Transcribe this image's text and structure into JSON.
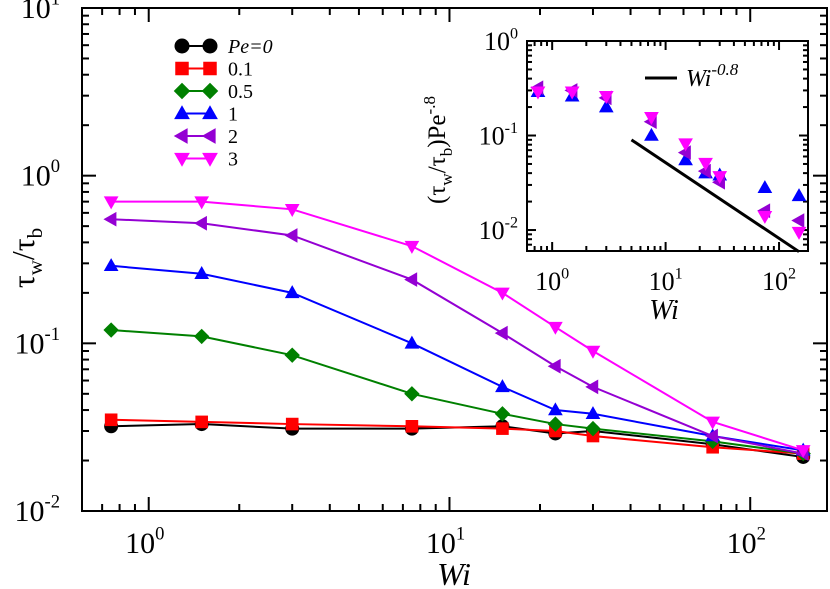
{
  "chart_data": {
    "type": "line",
    "xscale": "log",
    "yscale": "log",
    "xlim": [
      0.6,
      180
    ],
    "ylim": [
      0.01,
      10
    ],
    "xlabel": "Wi",
    "ylabel": {
      "base1": "τ",
      "sub1": "w",
      "sep": "/",
      "base2": "τ",
      "sub2": "b"
    },
    "x_ticks": [
      {
        "value": 1,
        "base": "10",
        "exp": "0"
      },
      {
        "value": 10,
        "base": "10",
        "exp": "1"
      },
      {
        "value": 100,
        "base": "10",
        "exp": "2"
      }
    ],
    "y_ticks": [
      {
        "value": 0.01,
        "base": "10",
        "exp": "-2"
      },
      {
        "value": 0.1,
        "base": "10",
        "exp": "-1"
      },
      {
        "value": 1,
        "base": "10",
        "exp": "0"
      },
      {
        "value": 10,
        "base": "10",
        "exp": "1"
      }
    ],
    "x": [
      0.75,
      1.5,
      3,
      7.5,
      15,
      22.5,
      30,
      75,
      150
    ],
    "series": [
      {
        "name": "Pe=0",
        "label": "Pe=0",
        "italic": true,
        "marker": "circle",
        "color": "#000000",
        "values": [
          0.032,
          0.033,
          0.031,
          0.031,
          0.032,
          0.029,
          0.03,
          0.025,
          0.021
        ]
      },
      {
        "name": "Pe=0.1",
        "label": "0.1",
        "italic": false,
        "marker": "square",
        "color": "#ff0000",
        "values": [
          0.035,
          0.034,
          0.033,
          0.032,
          0.031,
          0.03,
          0.028,
          0.024,
          0.022
        ]
      },
      {
        "name": "Pe=0.5",
        "label": "0.5",
        "italic": false,
        "marker": "diamond",
        "color": "#008000",
        "values": [
          0.12,
          0.11,
          0.085,
          0.05,
          0.038,
          0.033,
          0.031,
          0.026,
          0.022
        ]
      },
      {
        "name": "Pe=1",
        "label": "1",
        "italic": false,
        "marker": "triangle-up",
        "color": "#0000ff",
        "values": [
          0.29,
          0.26,
          0.2,
          0.1,
          0.055,
          0.04,
          0.038,
          0.028,
          0.023
        ]
      },
      {
        "name": "Pe=2",
        "label": "2",
        "italic": false,
        "marker": "triangle-left",
        "color": "#9400d3",
        "values": [
          0.55,
          0.52,
          0.44,
          0.24,
          0.115,
          0.073,
          0.055,
          0.028,
          0.022
        ]
      },
      {
        "name": "Pe=3",
        "label": "3",
        "italic": false,
        "marker": "triangle-down",
        "color": "#ff00ff",
        "values": [
          0.7,
          0.7,
          0.63,
          0.38,
          0.2,
          0.125,
          0.09,
          0.034,
          0.023
        ]
      }
    ],
    "inset": {
      "type": "scatter",
      "xscale": "log",
      "yscale": "log",
      "xlim": [
        0.6,
        180
      ],
      "ylim": [
        0.006,
        1
      ],
      "xlabel": "Wi",
      "ylabel": {
        "p1": "(τ",
        "s1": "w",
        "p2": "/τ",
        "s2": "b",
        "p3": ")Pe",
        "sup": "-.8"
      },
      "x_ticks": [
        {
          "value": 1,
          "base": "10",
          "exp": "0"
        },
        {
          "value": 10,
          "base": "10",
          "exp": "1"
        },
        {
          "value": 100,
          "base": "10",
          "exp": "2"
        }
      ],
      "y_ticks": [
        {
          "value": 0.01,
          "base": "10",
          "exp": "-2"
        },
        {
          "value": 0.1,
          "base": "10",
          "exp": "-1"
        },
        {
          "value": 1,
          "base": "10",
          "exp": "0"
        }
      ],
      "x": [
        0.75,
        1.5,
        3,
        7.5,
        15,
        22.5,
        30,
        75,
        150
      ],
      "series": [
        {
          "name": "Pe=1",
          "marker": "triangle-up",
          "color": "#0000ff",
          "values": [
            0.29,
            0.26,
            0.2,
            0.1,
            0.055,
            0.04,
            0.038,
            0.028,
            0.023
          ]
        },
        {
          "name": "Pe=2",
          "marker": "triangle-left",
          "color": "#9400d3",
          "values": [
            0.32,
            0.3,
            0.25,
            0.14,
            0.066,
            0.042,
            0.032,
            0.016,
            0.0126
          ]
        },
        {
          "name": "Pe=3",
          "marker": "triangle-down",
          "color": "#ff00ff",
          "values": [
            0.29,
            0.29,
            0.26,
            0.156,
            0.082,
            0.051,
            0.037,
            0.014,
            0.0095
          ]
        }
      ],
      "reference_line": {
        "label_base": "Wi",
        "label_exp": "-0.8",
        "exponent": -0.8,
        "x": [
          5,
          150
        ],
        "y": [
          0.09,
          0.0059
        ]
      }
    }
  }
}
